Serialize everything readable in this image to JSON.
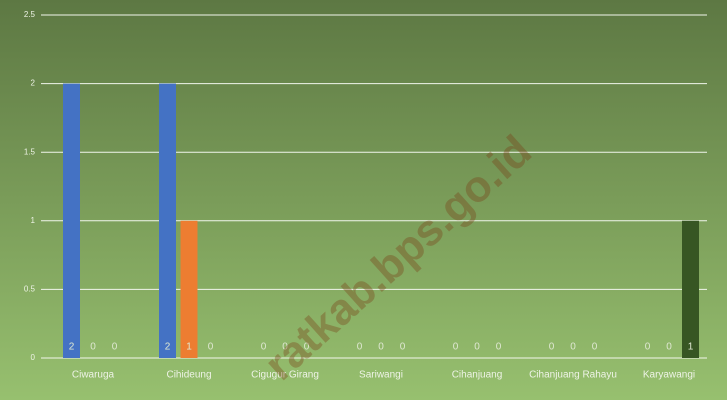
{
  "chart_data": {
    "type": "bar",
    "categories": [
      "Ciwaruga",
      "Cihideung",
      "Cigugur Girang",
      "Sariwangi",
      "Cihanjuang",
      "Cihanjuang Rahayu",
      "Karyawangi"
    ],
    "series": [
      {
        "color": "#4472c4",
        "values": [
          2,
          2,
          0,
          0,
          0,
          0,
          0
        ]
      },
      {
        "color": "#ed7d31",
        "values": [
          0,
          1,
          0,
          0,
          0,
          0,
          0
        ]
      },
      {
        "color": "#375623",
        "values": [
          0,
          0,
          0,
          0,
          0,
          0,
          1
        ]
      }
    ],
    "ylim": [
      0,
      2.5
    ],
    "yticks": [
      0,
      0.5,
      1,
      1.5,
      2,
      2.5
    ],
    "grid": true,
    "watermark": "ratkab.bps.go.id"
  }
}
